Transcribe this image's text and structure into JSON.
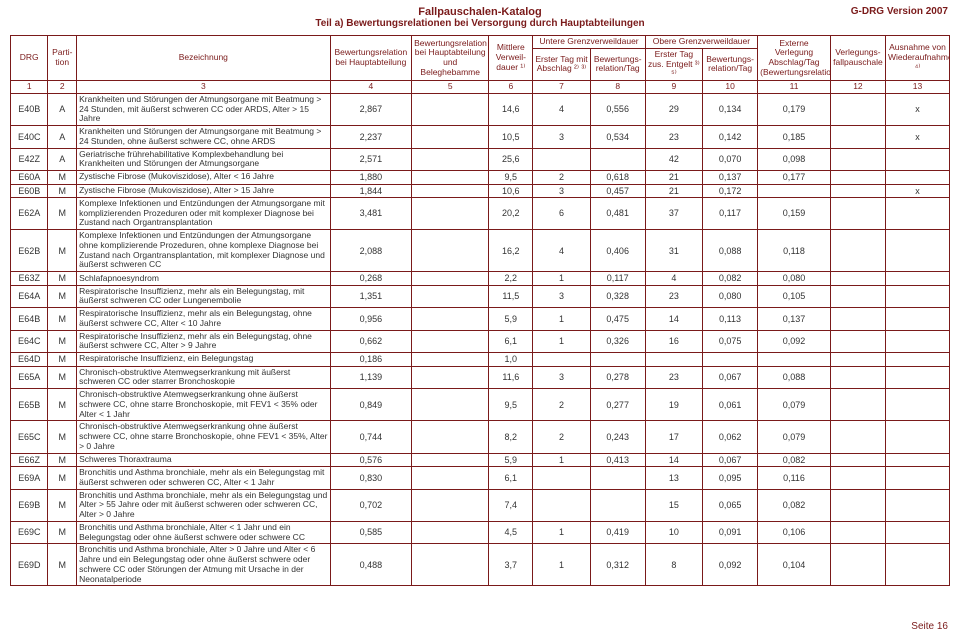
{
  "meta": {
    "version": "G-DRG Version 2007",
    "title": "Fallpauschalen-Katalog",
    "subtitle": "Teil a) Bewertungsrelationen bei Versorgung durch Hauptabteilungen",
    "footer": "Seite 16"
  },
  "header": {
    "drg": "DRG",
    "partition": "Parti-\ntion",
    "bezeichnung": "Bezeichnung",
    "rel_haupt": "Bewertungsrelation bei Hauptabteilung",
    "rel_beleg": "Bewertungsrelation bei Hauptabteilung und Beleghebamme",
    "verweildauer": "Mittlere Verweil-\ndauer ¹⁾",
    "untere_group": "Untere Grenzverweildauer",
    "untere_tag": "Erster Tag mit Abschlag ²⁾ ³⁾",
    "untere_rel": "Bewertungs-\nrelation/Tag",
    "obere_group": "Obere Grenzverweildauer",
    "obere_tag": "Erster Tag zus. Entgelt ³⁾ ⁵⁾",
    "obere_rel": "Bewertungs-\nrelation/Tag",
    "externe": "Externe Verlegung Abschlag/Tag (Bewertungsrelation)",
    "verlegung": "Verlegungs-\nfallpauschale",
    "ausnahme": "Ausnahme von Wiederaufnahme ⁴⁾"
  },
  "index_row": [
    "1",
    "2",
    "3",
    "4",
    "5",
    "6",
    "7",
    "8",
    "9",
    "10",
    "11",
    "12",
    "13"
  ],
  "rows": [
    {
      "drg": "E40B",
      "part": "A",
      "bez": "Krankheiten und Störungen der Atmungsorgane mit Beatmung > 24 Stunden, mit äußerst schweren CC oder ARDS, Alter > 15 Jahre",
      "c4": "2,867",
      "c5": "",
      "c6": "14,6",
      "c7": "4",
      "c8": "0,556",
      "c9": "29",
      "c10": "0,134",
      "c11": "0,179",
      "c12": "",
      "c13": "x"
    },
    {
      "drg": "E40C",
      "part": "A",
      "bez": "Krankheiten und Störungen der Atmungsorgane mit Beatmung > 24 Stunden, ohne äußerst schwere CC, ohne ARDS",
      "c4": "2,237",
      "c5": "",
      "c6": "10,5",
      "c7": "3",
      "c8": "0,534",
      "c9": "23",
      "c10": "0,142",
      "c11": "0,185",
      "c12": "",
      "c13": "x"
    },
    {
      "drg": "E42Z",
      "part": "A",
      "bez": "Geriatrische frührehabilitative Komplexbehandlung bei Krankheiten und Störungen der Atmungsorgane",
      "c4": "2,571",
      "c5": "",
      "c6": "25,6",
      "c7": "",
      "c8": "",
      "c9": "42",
      "c10": "0,070",
      "c11": "0,098",
      "c12": "",
      "c13": ""
    },
    {
      "drg": "E60A",
      "part": "M",
      "bez": "Zystische Fibrose (Mukoviszidose), Alter < 16 Jahre",
      "c4": "1,880",
      "c5": "",
      "c6": "9,5",
      "c7": "2",
      "c8": "0,618",
      "c9": "21",
      "c10": "0,137",
      "c11": "0,177",
      "c12": "",
      "c13": ""
    },
    {
      "drg": "E60B",
      "part": "M",
      "bez": "Zystische Fibrose (Mukoviszidose), Alter > 15 Jahre",
      "c4": "1,844",
      "c5": "",
      "c6": "10,6",
      "c7": "3",
      "c8": "0,457",
      "c9": "21",
      "c10": "0,172",
      "c11": "",
      "c12": "",
      "c13": "x"
    },
    {
      "drg": "E62A",
      "part": "M",
      "bez": "Komplexe Infektionen und Entzündungen der Atmungsorgane mit komplizierenden Prozeduren oder mit komplexer Diagnose bei Zustand nach Organtransplantation",
      "c4": "3,481",
      "c5": "",
      "c6": "20,2",
      "c7": "6",
      "c8": "0,481",
      "c9": "37",
      "c10": "0,117",
      "c11": "0,159",
      "c12": "",
      "c13": ""
    },
    {
      "drg": "E62B",
      "part": "M",
      "bez": "Komplexe Infektionen und Entzündungen der Atmungsorgane ohne komplizierende Prozeduren, ohne komplexe Diagnose bei Zustand nach Organtransplantation, mit komplexer Diagnose und äußerst schweren CC",
      "c4": "2,088",
      "c5": "",
      "c6": "16,2",
      "c7": "4",
      "c8": "0,406",
      "c9": "31",
      "c10": "0,088",
      "c11": "0,118",
      "c12": "",
      "c13": ""
    },
    {
      "drg": "E63Z",
      "part": "M",
      "bez": "Schlafapnoesyndrom",
      "c4": "0,268",
      "c5": "",
      "c6": "2,2",
      "c7": "1",
      "c8": "0,117",
      "c9": "4",
      "c10": "0,082",
      "c11": "0,080",
      "c12": "",
      "c13": ""
    },
    {
      "drg": "E64A",
      "part": "M",
      "bez": "Respiratorische Insuffizienz, mehr als ein Belegungstag, mit äußerst schweren CC oder Lungenembolie",
      "c4": "1,351",
      "c5": "",
      "c6": "11,5",
      "c7": "3",
      "c8": "0,328",
      "c9": "23",
      "c10": "0,080",
      "c11": "0,105",
      "c12": "",
      "c13": ""
    },
    {
      "drg": "E64B",
      "part": "M",
      "bez": "Respiratorische Insuffizienz, mehr als ein Belegungstag, ohne äußerst schwere CC, Alter < 10 Jahre",
      "c4": "0,956",
      "c5": "",
      "c6": "5,9",
      "c7": "1",
      "c8": "0,475",
      "c9": "14",
      "c10": "0,113",
      "c11": "0,137",
      "c12": "",
      "c13": ""
    },
    {
      "drg": "E64C",
      "part": "M",
      "bez": "Respiratorische Insuffizienz, mehr als ein Belegungstag, ohne äußerst schwere CC, Alter > 9 Jahre",
      "c4": "0,662",
      "c5": "",
      "c6": "6,1",
      "c7": "1",
      "c8": "0,326",
      "c9": "16",
      "c10": "0,075",
      "c11": "0,092",
      "c12": "",
      "c13": ""
    },
    {
      "drg": "E64D",
      "part": "M",
      "bez": "Respiratorische Insuffizienz, ein Belegungstag",
      "c4": "0,186",
      "c5": "",
      "c6": "1,0",
      "c7": "",
      "c8": "",
      "c9": "",
      "c10": "",
      "c11": "",
      "c12": "",
      "c13": ""
    },
    {
      "drg": "E65A",
      "part": "M",
      "bez": "Chronisch-obstruktive Atemwegserkrankung mit äußerst schweren CC oder starrer Bronchoskopie",
      "c4": "1,139",
      "c5": "",
      "c6": "11,6",
      "c7": "3",
      "c8": "0,278",
      "c9": "23",
      "c10": "0,067",
      "c11": "0,088",
      "c12": "",
      "c13": ""
    },
    {
      "drg": "E65B",
      "part": "M",
      "bez": "Chronisch-obstruktive Atemwegserkrankung ohne äußerst schwere CC, ohne starre Bronchoskopie, mit FEV1 < 35% oder Alter < 1 Jahr",
      "c4": "0,849",
      "c5": "",
      "c6": "9,5",
      "c7": "2",
      "c8": "0,277",
      "c9": "19",
      "c10": "0,061",
      "c11": "0,079",
      "c12": "",
      "c13": ""
    },
    {
      "drg": "E65C",
      "part": "M",
      "bez": "Chronisch-obstruktive Atemwegserkrankung ohne äußerst schwere CC, ohne starre Bronchoskopie, ohne FEV1 < 35%, Alter > 0 Jahre",
      "c4": "0,744",
      "c5": "",
      "c6": "8,2",
      "c7": "2",
      "c8": "0,243",
      "c9": "17",
      "c10": "0,062",
      "c11": "0,079",
      "c12": "",
      "c13": ""
    },
    {
      "drg": "E66Z",
      "part": "M",
      "bez": "Schweres Thoraxtrauma",
      "c4": "0,576",
      "c5": "",
      "c6": "5,9",
      "c7": "1",
      "c8": "0,413",
      "c9": "14",
      "c10": "0,067",
      "c11": "0,082",
      "c12": "",
      "c13": ""
    },
    {
      "drg": "E69A",
      "part": "M",
      "bez": "Bronchitis und Asthma bronchiale, mehr als ein Belegungstag mit äußerst schweren oder schweren CC, Alter < 1 Jahr",
      "c4": "0,830",
      "c5": "",
      "c6": "6,1",
      "c7": "",
      "c8": "",
      "c9": "13",
      "c10": "0,095",
      "c11": "0,116",
      "c12": "",
      "c13": ""
    },
    {
      "drg": "E69B",
      "part": "M",
      "bez": "Bronchitis und Asthma bronchiale, mehr als ein Belegungstag und Alter > 55 Jahre oder mit äußerst schweren oder schweren CC, Alter > 0 Jahre",
      "c4": "0,702",
      "c5": "",
      "c6": "7,4",
      "c7": "",
      "c8": "",
      "c9": "15",
      "c10": "0,065",
      "c11": "0,082",
      "c12": "",
      "c13": ""
    },
    {
      "drg": "E69C",
      "part": "M",
      "bez": "Bronchitis und Asthma bronchiale, Alter < 1 Jahr und ein Belegungstag oder ohne äußerst schwere oder schwere CC",
      "c4": "0,585",
      "c5": "",
      "c6": "4,5",
      "c7": "1",
      "c8": "0,419",
      "c9": "10",
      "c10": "0,091",
      "c11": "0,106",
      "c12": "",
      "c13": ""
    },
    {
      "drg": "E69D",
      "part": "M",
      "bez": "Bronchitis und Asthma bronchiale, Alter > 0 Jahre und Alter < 6 Jahre und ein Belegungstag oder ohne äußerst schwere oder schwere CC oder Störungen der Atmung mit Ursache in der Neonatalperiode",
      "c4": "0,488",
      "c5": "",
      "c6": "3,7",
      "c7": "1",
      "c8": "0,312",
      "c9": "8",
      "c10": "0,092",
      "c11": "0,104",
      "c12": "",
      "c13": ""
    }
  ]
}
